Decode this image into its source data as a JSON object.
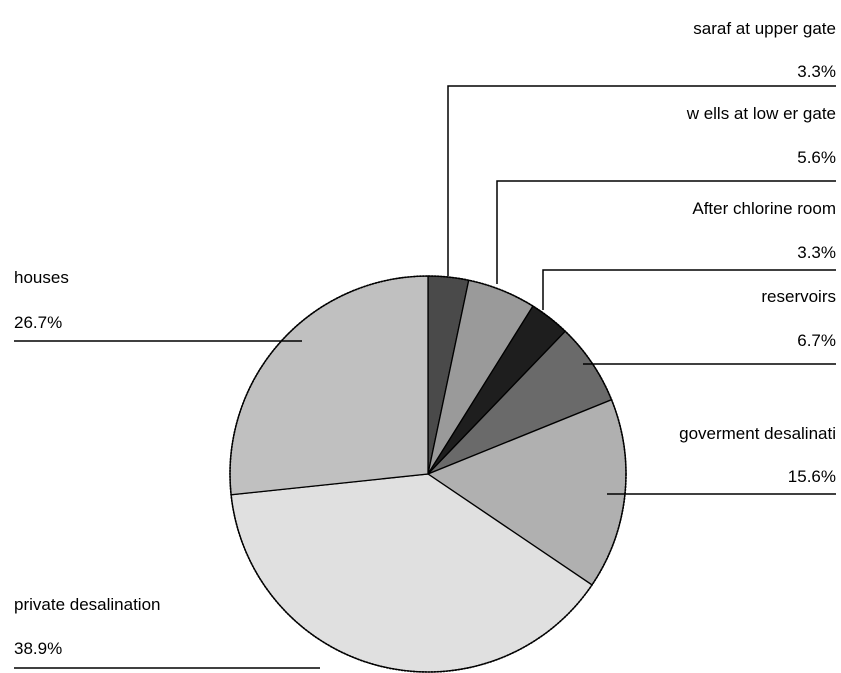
{
  "chart_data": {
    "type": "pie",
    "title": "",
    "slices": [
      {
        "label": "saraf at upper gate",
        "percent_label": "3.3%",
        "value": 3.3,
        "color": "#4a4a4a"
      },
      {
        "label": "w ells at low er gate",
        "percent_label": "5.6%",
        "value": 5.6,
        "color": "#9a9a9a"
      },
      {
        "label": "After chlorine room",
        "percent_label": "3.3%",
        "value": 3.3,
        "color": "#1e1e1e"
      },
      {
        "label": "reservoirs",
        "percent_label": "6.7%",
        "value": 6.7,
        "color": "#6a6a6a"
      },
      {
        "label": "goverment desalinati",
        "percent_label": "15.6%",
        "value": 15.6,
        "color": "#b0b0b0"
      },
      {
        "label": "private desalination",
        "percent_label": "38.9%",
        "value": 38.9,
        "color": "#e0e0e0"
      },
      {
        "label": "houses",
        "percent_label": "26.7%",
        "value": 26.7,
        "color": "#c0c0c0"
      }
    ],
    "start_angle": "12 o'clock",
    "direction": "clockwise",
    "legend": "none"
  }
}
